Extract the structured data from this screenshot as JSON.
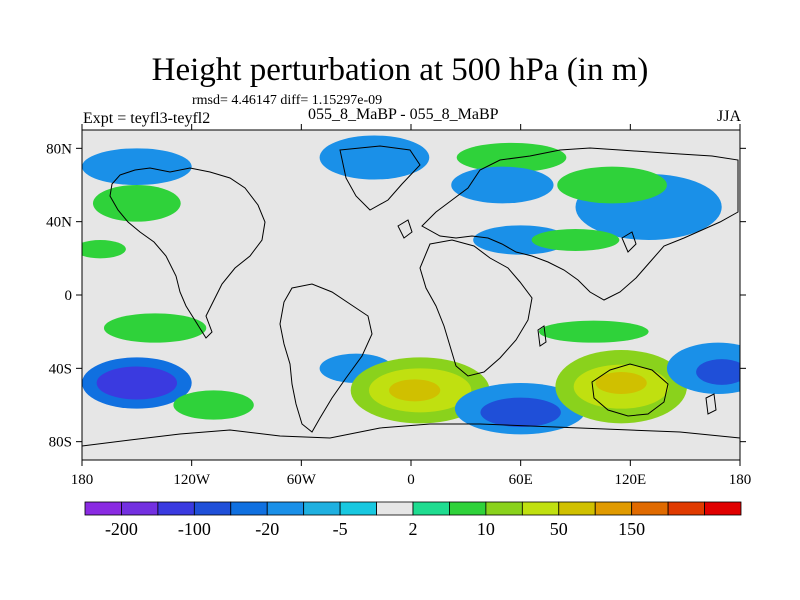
{
  "figure": {
    "title": "Height perturbation at 500 hPa (in m)",
    "stats_line": "rmsd= 4.46147 diff= 1.15297e-09",
    "left_label": "Expt = teyfl3-teyfl2",
    "center_label": "055_8_MaBP - 055_8_MaBP",
    "right_label": "JJA"
  },
  "map": {
    "lat_ticks": [
      {
        "value": 80,
        "label": "80N"
      },
      {
        "value": 40,
        "label": "40N"
      },
      {
        "value": 0,
        "label": "0"
      },
      {
        "value": -40,
        "label": "40S"
      },
      {
        "value": -80,
        "label": "80S"
      }
    ],
    "lon_ticks": [
      {
        "value": -180,
        "label": "180"
      },
      {
        "value": -120,
        "label": "120W"
      },
      {
        "value": -60,
        "label": "60W"
      },
      {
        "value": 0,
        "label": "0"
      },
      {
        "value": 60,
        "label": "60E"
      },
      {
        "value": 120,
        "label": "120E"
      },
      {
        "value": 180,
        "label": "180"
      }
    ],
    "lon_range": [
      -180,
      180
    ],
    "lat_range": [
      -90,
      90
    ],
    "background_color": "#e6e6e6",
    "coastline_color": "#000000"
  },
  "colorbar": {
    "colors": [
      "#8a2be2",
      "#7330e0",
      "#3a3ae0",
      "#1f4fd8",
      "#1070e0",
      "#1a90e8",
      "#1fb0e0",
      "#18c8e0",
      "#e6e6e6",
      "#1fdc90",
      "#2fd23a",
      "#8ad21c",
      "#c0e010",
      "#d0c000",
      "#e09a00",
      "#e06a00",
      "#e03a00",
      "#e00000"
    ],
    "tick_labels": [
      "-200",
      "-100",
      "-20",
      "-5",
      "2",
      "10",
      "50",
      "150"
    ]
  },
  "anomalies": [
    {
      "lon": -150,
      "lat": -48,
      "value": -15,
      "rx": 30,
      "ry": 14
    },
    {
      "lon": -150,
      "lat": -48,
      "value": -50,
      "rx": 22,
      "ry": 9
    },
    {
      "lon": -108,
      "lat": -60,
      "value": 4,
      "rx": 22,
      "ry": 8
    },
    {
      "lon": -30,
      "lat": -40,
      "value": -6,
      "rx": 20,
      "ry": 8
    },
    {
      "lon": 5,
      "lat": -52,
      "value": 6,
      "rx": 38,
      "ry": 18
    },
    {
      "lon": 5,
      "lat": -52,
      "value": 12,
      "rx": 28,
      "ry": 12
    },
    {
      "lon": 2,
      "lat": -52,
      "value": 25,
      "rx": 14,
      "ry": 6
    },
    {
      "lon": 60,
      "lat": -62,
      "value": -8,
      "rx": 36,
      "ry": 14
    },
    {
      "lon": 60,
      "lat": -64,
      "value": -25,
      "rx": 22,
      "ry": 8
    },
    {
      "lon": 115,
      "lat": -50,
      "value": 6,
      "rx": 36,
      "ry": 20
    },
    {
      "lon": 115,
      "lat": -50,
      "value": 14,
      "rx": 26,
      "ry": 12
    },
    {
      "lon": 115,
      "lat": -48,
      "value": 25,
      "rx": 14,
      "ry": 6
    },
    {
      "lon": 168,
      "lat": -40,
      "value": -8,
      "rx": 28,
      "ry": 14
    },
    {
      "lon": 170,
      "lat": -42,
      "value": -25,
      "rx": 14,
      "ry": 7
    },
    {
      "lon": -140,
      "lat": -18,
      "value": 4,
      "rx": 28,
      "ry": 8
    },
    {
      "lon": 100,
      "lat": -20,
      "value": 3,
      "rx": 30,
      "ry": 6
    },
    {
      "lon": 130,
      "lat": 48,
      "value": -8,
      "rx": 40,
      "ry": 18
    },
    {
      "lon": 110,
      "lat": 60,
      "value": 4,
      "rx": 30,
      "ry": 10
    },
    {
      "lon": -150,
      "lat": 50,
      "value": 4,
      "rx": 24,
      "ry": 10
    },
    {
      "lon": -150,
      "lat": 70,
      "value": -6,
      "rx": 30,
      "ry": 10
    },
    {
      "lon": -20,
      "lat": 75,
      "value": -6,
      "rx": 30,
      "ry": 12
    },
    {
      "lon": 55,
      "lat": 75,
      "value": 4,
      "rx": 30,
      "ry": 8
    },
    {
      "lon": 50,
      "lat": 60,
      "value": -5,
      "rx": 28,
      "ry": 10
    },
    {
      "lon": 60,
      "lat": 30,
      "value": -5,
      "rx": 26,
      "ry": 8
    },
    {
      "lon": -170,
      "lat": 25,
      "value": 3,
      "rx": 14,
      "ry": 5
    },
    {
      "lon": 90,
      "lat": 30,
      "value": 3,
      "rx": 24,
      "ry": 6
    }
  ]
}
